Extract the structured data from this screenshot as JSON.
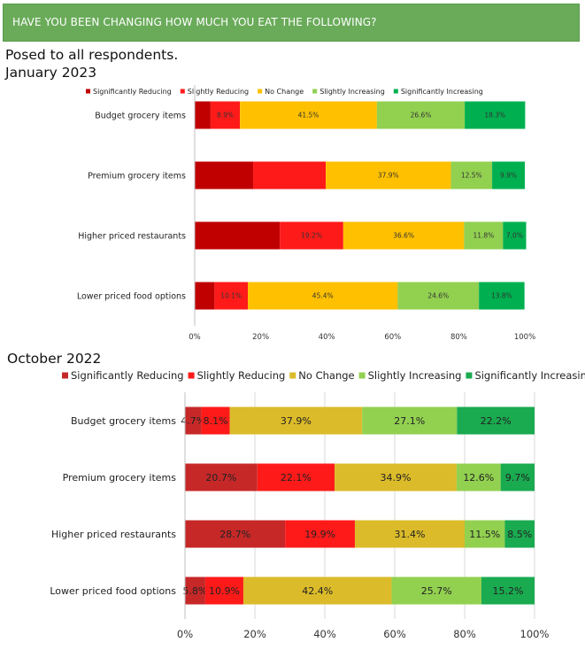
{
  "header": {
    "title": "HAVE YOU BEEN CHANGING HOW MUCH YOU EAT THE FOLLOWING?",
    "subtitle": "Posed to all respondents."
  },
  "colors": {
    "banner": "#6aab5a",
    "chart1": [
      "#c00000",
      "#ff1a1a",
      "#ffc000",
      "#92d050",
      "#00b050"
    ],
    "chart2": [
      "#c62828",
      "#ff1a1a",
      "#dbbb2a",
      "#92d050",
      "#1aaa50"
    ]
  },
  "chart_data": [
    {
      "type": "bar",
      "orientation": "horizontal",
      "stacked": true,
      "title": "January 2023",
      "categories": [
        "Budget grocery items",
        "Premium grocery items",
        "Higher priced restaurants",
        "Lower priced food options"
      ],
      "series": [
        {
          "name": "Significantly Reducing",
          "values": [
            4.8,
            17.7,
            25.8,
            6.0
          ]
        },
        {
          "name": "Slightly Reducing",
          "values": [
            8.9,
            22.0,
            19.2,
            10.1
          ]
        },
        {
          "name": "No Change",
          "values": [
            41.5,
            37.9,
            36.6,
            45.4
          ]
        },
        {
          "name": "Slightly Increasing",
          "values": [
            26.6,
            12.5,
            11.8,
            24.6
          ]
        },
        {
          "name": "Significantly Increasing",
          "values": [
            18.3,
            9.9,
            7.0,
            13.8
          ]
        }
      ],
      "data_labels": [
        [
          "",
          "",
          "",
          ""
        ],
        [
          "8.9%",
          "",
          "19.2%",
          "10.1%"
        ],
        [
          "41.5%",
          "37.9%",
          "36.6%",
          "45.4%"
        ],
        [
          "26.6%",
          "12.5%",
          "11.8%",
          "24.6%"
        ],
        [
          "18.3%",
          "9.9%",
          "7.0%",
          "13.8%"
        ]
      ],
      "x_ticks": [
        "0%",
        "20%",
        "40%",
        "60%",
        "80%",
        "100%"
      ],
      "xlim": [
        0,
        100
      ],
      "legend": "top",
      "grid": false
    },
    {
      "type": "bar",
      "orientation": "horizontal",
      "stacked": true,
      "title": "October 2022",
      "categories": [
        "Budget grocery items",
        "Premium grocery items",
        "Higher priced restaurants",
        "Lower priced food options"
      ],
      "series": [
        {
          "name": "Significantly Reducing",
          "values": [
            4.7,
            20.7,
            28.7,
            5.8
          ]
        },
        {
          "name": "Slightly Reducing",
          "values": [
            8.1,
            22.1,
            19.9,
            10.9
          ]
        },
        {
          "name": "No Change",
          "values": [
            37.9,
            34.9,
            31.4,
            42.4
          ]
        },
        {
          "name": "Slightly Increasing",
          "values": [
            27.1,
            12.6,
            11.5,
            25.7
          ]
        },
        {
          "name": "Significantly Increasing",
          "values": [
            22.2,
            9.7,
            8.5,
            15.2
          ]
        }
      ],
      "data_labels": [
        [
          "4.7%",
          "20.7%",
          "28.7%",
          "5.8%"
        ],
        [
          "8.1%",
          "22.1%",
          "19.9%",
          "10.9%"
        ],
        [
          "37.9%",
          "34.9%",
          "31.4%",
          "42.4%"
        ],
        [
          "27.1%",
          "12.6%",
          "11.5%",
          "25.7%"
        ],
        [
          "22.2%",
          "9.7%",
          "8.5%",
          "15.2%"
        ]
      ],
      "x_ticks": [
        "0%",
        "20%",
        "40%",
        "60%",
        "80%",
        "100%"
      ],
      "xlim": [
        0,
        100
      ],
      "legend": "top",
      "grid": true
    }
  ]
}
